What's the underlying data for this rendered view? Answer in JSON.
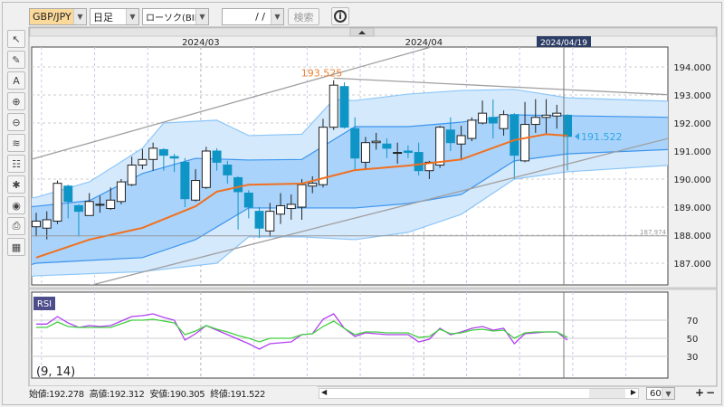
{
  "toolbar": {
    "pair": "GBP/JPY",
    "timeframe": "日足",
    "chart_type": "ローソク(BID)",
    "date_value": "/ /",
    "search_label": "検索",
    "info_icon": "info-icon",
    "pair_bg": "#fbd99b"
  },
  "left_tools": [
    "cursor-icon",
    "pencil-icon",
    "erase-all-icon",
    "zoom-in-icon",
    "zoom-out-icon",
    "indicator-icon",
    "table-icon",
    "symbols-icon",
    "eye-icon",
    "print-icon",
    "layout-icon"
  ],
  "chart": {
    "months": [
      {
        "label": "2024/03",
        "index": 16
      },
      {
        "label": "2024/04",
        "index": 37
      }
    ],
    "crosshair": {
      "label": "2024/04/19",
      "index": 50
    },
    "price_ticks": [
      "187.000",
      "188.000",
      "189.000",
      "190.000",
      "191.000",
      "192.000",
      "193.000",
      "194.000"
    ],
    "high_label": "193.525",
    "last_label": "191.522",
    "line_label": "187.974",
    "colors": {
      "up_body": "#ffffff",
      "down_body": "#0e95c6",
      "ma": "#f07020",
      "band_outer": "#d5e9fc",
      "band_inner": "#a9d3fa",
      "band_line": "#6ab4f4",
      "trend": "#a0a0a0",
      "last": "#31a7e8",
      "high": "#f08030"
    },
    "candles": [
      [
        188.3,
        188.8,
        187.95,
        188.5
      ],
      [
        188.25,
        188.85,
        187.85,
        188.55
      ],
      [
        188.5,
        189.95,
        188.4,
        189.85
      ],
      [
        189.75,
        189.8,
        188.6,
        189.2
      ],
      [
        189.05,
        189.1,
        187.95,
        188.85
      ],
      [
        188.7,
        189.5,
        188.7,
        189.2
      ],
      [
        189.1,
        189.4,
        188.8,
        189.1
      ],
      [
        188.95,
        189.7,
        188.9,
        189.25
      ],
      [
        189.2,
        190.0,
        189.1,
        189.9
      ],
      [
        189.8,
        190.8,
        189.75,
        190.5
      ],
      [
        190.5,
        191.07,
        190.35,
        190.7
      ],
      [
        190.7,
        191.3,
        190.3,
        191.1
      ],
      [
        191.05,
        191.1,
        190.3,
        190.85
      ],
      [
        190.8,
        190.9,
        190.25,
        190.75
      ],
      [
        190.6,
        190.75,
        189.0,
        189.3
      ],
      [
        189.25,
        190.35,
        189.2,
        189.95
      ],
      [
        189.7,
        191.15,
        189.65,
        191.0
      ],
      [
        191.0,
        191.1,
        190.3,
        190.6
      ],
      [
        190.5,
        190.65,
        189.84,
        190.15
      ],
      [
        190.05,
        190.1,
        188.2,
        189.55
      ],
      [
        189.5,
        189.6,
        188.6,
        189.0
      ],
      [
        188.85,
        189.0,
        187.9,
        188.25
      ],
      [
        188.15,
        189.15,
        187.95,
        188.85
      ],
      [
        188.75,
        189.5,
        188.4,
        189.05
      ],
      [
        188.95,
        189.45,
        188.55,
        189.1
      ],
      [
        189.0,
        190.0,
        188.55,
        189.8
      ],
      [
        189.75,
        190.1,
        189.5,
        189.85
      ],
      [
        189.8,
        192.15,
        189.7,
        191.85
      ],
      [
        191.85,
        193.525,
        191.75,
        193.35
      ],
      [
        193.3,
        193.45,
        191.8,
        191.85
      ],
      [
        191.8,
        192.2,
        190.35,
        190.75
      ],
      [
        190.6,
        191.5,
        190.35,
        191.3
      ],
      [
        191.3,
        191.65,
        191.05,
        191.35
      ],
      [
        191.25,
        191.45,
        190.75,
        191.1
      ],
      [
        190.95,
        191.3,
        190.55,
        190.95
      ],
      [
        191.0,
        191.2,
        190.75,
        190.95
      ],
      [
        190.95,
        191.3,
        190.13,
        190.3
      ],
      [
        190.3,
        190.65,
        190.0,
        190.6
      ],
      [
        190.5,
        191.9,
        190.4,
        191.85
      ],
      [
        191.75,
        192.2,
        191.0,
        191.3
      ],
      [
        191.25,
        191.9,
        190.67,
        191.55
      ],
      [
        191.45,
        192.2,
        191.35,
        192.1
      ],
      [
        192.0,
        192.8,
        191.95,
        192.35
      ],
      [
        192.2,
        192.84,
        191.45,
        192.0
      ],
      [
        191.8,
        192.45,
        191.55,
        192.3
      ],
      [
        192.3,
        192.35,
        190.0,
        190.85
      ],
      [
        190.65,
        192.75,
        190.6,
        191.95
      ],
      [
        191.95,
        192.85,
        191.65,
        192.2
      ],
      [
        192.2,
        192.85,
        191.6,
        192.28
      ],
      [
        192.25,
        192.65,
        191.8,
        192.35
      ],
      [
        192.278,
        192.312,
        190.305,
        191.522
      ]
    ],
    "ma": [
      [
        0,
        187.2
      ],
      [
        5,
        187.84
      ],
      [
        10,
        188.26
      ],
      [
        15,
        189.03
      ],
      [
        17,
        189.55
      ],
      [
        20,
        189.8
      ],
      [
        25,
        189.84
      ],
      [
        30,
        190.32
      ],
      [
        35,
        190.48
      ],
      [
        40,
        190.7
      ],
      [
        45,
        191.39
      ],
      [
        48,
        191.6
      ],
      [
        50,
        191.55
      ]
    ],
    "band_outer_upper": [
      [
        -1,
        189.3
      ],
      [
        0,
        189.35
      ],
      [
        5,
        189.9
      ],
      [
        10,
        191.1
      ],
      [
        12,
        192.0
      ],
      [
        17,
        192.1
      ],
      [
        20,
        191.55
      ],
      [
        25,
        191.6
      ],
      [
        28,
        192.84
      ],
      [
        30,
        192.8
      ],
      [
        35,
        193.03
      ],
      [
        40,
        193.16
      ],
      [
        45,
        193.2
      ],
      [
        50,
        192.9
      ],
      [
        60,
        192.77
      ]
    ],
    "band_outer_lower": [
      [
        -1,
        186.5
      ],
      [
        0,
        186.55
      ],
      [
        10,
        186.7
      ],
      [
        17,
        187.0
      ],
      [
        20,
        187.94
      ],
      [
        25,
        187.94
      ],
      [
        30,
        187.84
      ],
      [
        35,
        188.1
      ],
      [
        40,
        188.74
      ],
      [
        45,
        190.0
      ],
      [
        50,
        190.26
      ],
      [
        60,
        190.5
      ]
    ],
    "band_inner_upper": [
      [
        -1,
        189.0
      ],
      [
        0,
        189.03
      ],
      [
        5,
        189.23
      ],
      [
        10,
        190.2
      ],
      [
        15,
        190.74
      ],
      [
        20,
        190.68
      ],
      [
        25,
        190.7
      ],
      [
        30,
        191.87
      ],
      [
        35,
        191.87
      ],
      [
        40,
        192.03
      ],
      [
        45,
        192.29
      ],
      [
        50,
        192.26
      ],
      [
        60,
        192.2
      ]
    ],
    "band_inner_lower": [
      [
        -1,
        186.9
      ],
      [
        0,
        187.0
      ],
      [
        10,
        187.2
      ],
      [
        15,
        187.84
      ],
      [
        20,
        188.97
      ],
      [
        25,
        188.97
      ],
      [
        30,
        188.97
      ],
      [
        35,
        189.13
      ],
      [
        40,
        189.45
      ],
      [
        45,
        190.65
      ],
      [
        50,
        190.9
      ],
      [
        60,
        191.06
      ]
    ],
    "trend_lines": [
      [
        [
          -0.5,
          190.7
        ],
        [
          38,
          194.8
        ]
      ],
      [
        [
          5,
          186.2
        ],
        [
          60,
          191.5
        ]
      ],
      [
        [
          28,
          193.6
        ],
        [
          60,
          193.0
        ]
      ]
    ],
    "hline": 187.974
  },
  "rsi": {
    "label": "RSI",
    "params": "(9, 14)",
    "ticks": [
      "70",
      "50",
      "30"
    ],
    "colors": {
      "rsi9": "#b040f0",
      "rsi14": "#40d040"
    },
    "rsi9": [
      65.7,
      65.7,
      74,
      67,
      62,
      64,
      63,
      64,
      69,
      74,
      75,
      77,
      73,
      70,
      48,
      55,
      64,
      59,
      54,
      49,
      44,
      38,
      44,
      45,
      46,
      54,
      55,
      71,
      77,
      61,
      52,
      56,
      55,
      54,
      54,
      54,
      46,
      49,
      61,
      54,
      57,
      61,
      63,
      59,
      61,
      44,
      55,
      56,
      57,
      57,
      48
    ],
    "rsi14": [
      62,
      62,
      68,
      63,
      62,
      62,
      62,
      62,
      66,
      70,
      70,
      71,
      69,
      67,
      54,
      58,
      64,
      60,
      57,
      53,
      50,
      46,
      50,
      50,
      50,
      54,
      55,
      63,
      69,
      61,
      54,
      57,
      57,
      56,
      56,
      56,
      51,
      52,
      60,
      55,
      56,
      59,
      60,
      58,
      59,
      50,
      56,
      57,
      57,
      57,
      51
    ]
  },
  "status": {
    "open": "始値:192.278",
    "high": "高値:192.312",
    "low": "安値:190.305",
    "close": "終値:191.522",
    "count": "60"
  }
}
